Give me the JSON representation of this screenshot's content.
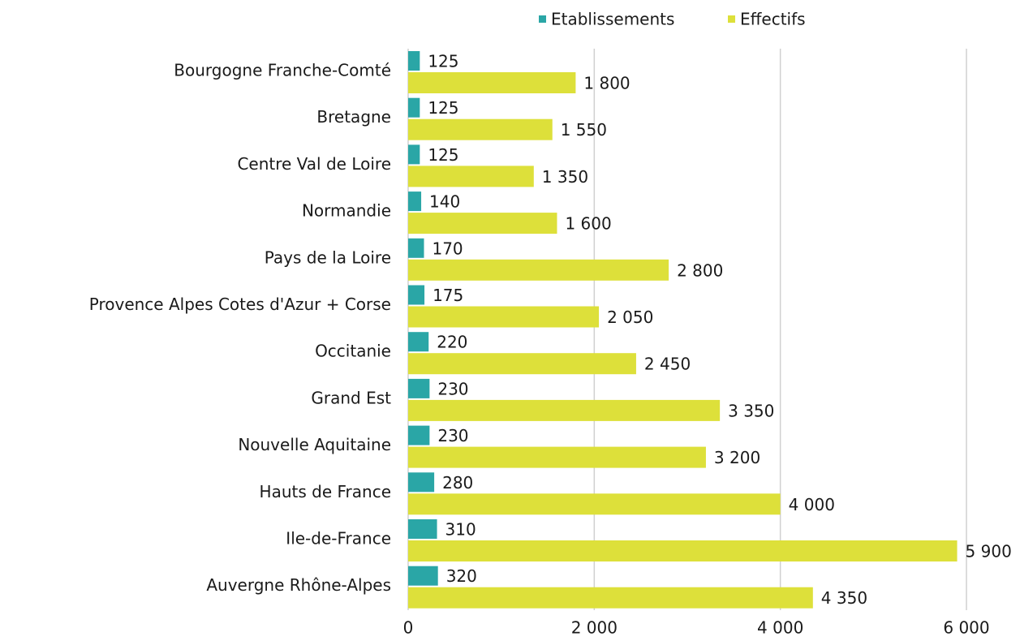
{
  "chart_data": {
    "type": "hbar",
    "categories": [
      "Bourgogne Franche-Comté",
      "Bretagne",
      "Centre Val de Loire",
      "Normandie",
      "Pays de la Loire",
      "Provence Alpes Cotes d'Azur + Corse",
      "Occitanie",
      "Grand Est",
      "Nouvelle Aquitaine",
      "Hauts de France",
      "Ile-de-France",
      "Auvergne Rhône-Alpes"
    ],
    "series": [
      {
        "name": "Etablissements",
        "color": "#2aa6a6",
        "values": [
          125,
          125,
          125,
          140,
          170,
          175,
          220,
          230,
          230,
          280,
          310,
          320
        ]
      },
      {
        "name": "Effectifs",
        "color": "#dde03a",
        "values": [
          1800,
          1550,
          1350,
          1600,
          2800,
          2050,
          2450,
          3350,
          3200,
          4000,
          5900,
          4350
        ],
        "value_labels": [
          "1 800",
          "1 550",
          "1 350",
          "1 600",
          "2 800",
          "2 050",
          "2 450",
          "3 350",
          "3 200",
          "4 000",
          "5 900",
          "4 350"
        ]
      }
    ],
    "xlim": [
      0,
      6000
    ],
    "xticks": [
      0,
      {
        "value": 2000,
        "label": "2 000"
      },
      {
        "value": 4000,
        "label": "4 000"
      },
      {
        "value": 6000,
        "label": "6 000"
      }
    ],
    "grid": true,
    "legend": "top"
  }
}
